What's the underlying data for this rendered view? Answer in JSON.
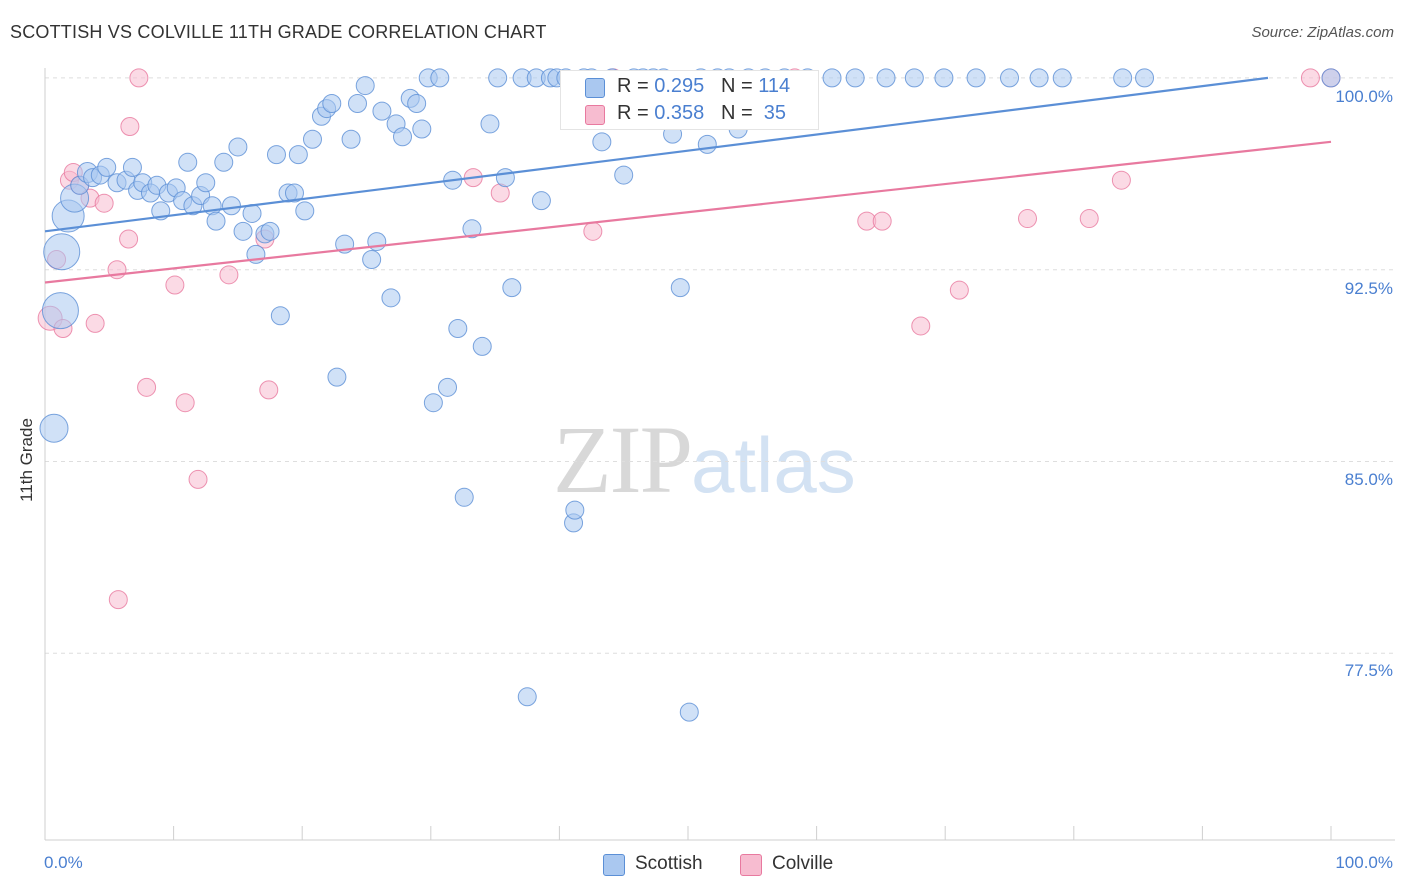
{
  "header": {
    "title": "SCOTTISH VS COLVILLE 11TH GRADE CORRELATION CHART",
    "source": "Source: ZipAtlas.com"
  },
  "watermark": {
    "zip": "ZIP",
    "atlas": "atlas"
  },
  "stats": {
    "r_label": "R =",
    "n_label": "N =",
    "rows": [
      {
        "r": "0.295",
        "n": "114",
        "color": "#aac8f0"
      },
      {
        "r": "0.358",
        "n": "35",
        "color": "#f7bcd0"
      }
    ]
  },
  "legend": {
    "items": [
      {
        "label": "Scottish",
        "color": "#aac8f0"
      },
      {
        "label": "Colville",
        "color": "#f7bcd0"
      }
    ]
  },
  "chart_data": {
    "type": "scatter",
    "title": "SCOTTISH VS COLVILLE 11TH GRADE CORRELATION CHART",
    "xlabel": "",
    "ylabel": "11th Grade",
    "xlim": [
      0,
      100
    ],
    "ylim": [
      70.2,
      100.7
    ],
    "x_tick_labels": [
      "0.0%",
      "100.0%"
    ],
    "y_ticks": [
      77.5,
      85.0,
      92.5,
      100.0
    ],
    "y_tick_labels": [
      "77.5%",
      "85.0%",
      "92.5%",
      "100.0%"
    ],
    "grid": true,
    "legend_position": "bottom-center",
    "series": [
      {
        "name": "Scottish",
        "color": "#5b8fd6",
        "fill": "#aac8f0",
        "trend": {
          "x": [
            0,
            95.1
          ],
          "y": [
            94.0,
            100.0
          ]
        },
        "points": [
          [
            0.7,
            86.3,
            14
          ],
          [
            1.2,
            90.9,
            18
          ],
          [
            1.3,
            93.2,
            18
          ],
          [
            1.8,
            94.6,
            16
          ],
          [
            2.3,
            95.3,
            14
          ],
          [
            2.7,
            95.8,
            9
          ],
          [
            3.3,
            96.3,
            10
          ],
          [
            3.7,
            96.1,
            9
          ],
          [
            4.3,
            96.2,
            9
          ],
          [
            4.8,
            96.5,
            9
          ],
          [
            5.6,
            95.9,
            9
          ],
          [
            6.3,
            96.0,
            9
          ],
          [
            6.8,
            96.5,
            9
          ],
          [
            7.2,
            95.6,
            9
          ],
          [
            7.6,
            95.9,
            9
          ],
          [
            8.2,
            95.5,
            9
          ],
          [
            8.7,
            95.8,
            9
          ],
          [
            9.0,
            94.8,
            9
          ],
          [
            9.6,
            95.5,
            9
          ],
          [
            10.2,
            95.7,
            9
          ],
          [
            10.7,
            95.2,
            9
          ],
          [
            11.1,
            96.7,
            9
          ],
          [
            11.5,
            95.0,
            9
          ],
          [
            12.1,
            95.4,
            9
          ],
          [
            12.5,
            95.9,
            9
          ],
          [
            13.0,
            95.0,
            9
          ],
          [
            13.3,
            94.4,
            9
          ],
          [
            13.9,
            96.7,
            9
          ],
          [
            14.5,
            95.0,
            9
          ],
          [
            15.0,
            97.3,
            9
          ],
          [
            15.4,
            94.0,
            9
          ],
          [
            16.1,
            94.7,
            9
          ],
          [
            16.4,
            93.1,
            9
          ],
          [
            17.1,
            93.9,
            9
          ],
          [
            17.5,
            94.0,
            9
          ],
          [
            18.0,
            97.0,
            9
          ],
          [
            18.3,
            90.7,
            9
          ],
          [
            18.9,
            95.5,
            9
          ],
          [
            19.4,
            95.5,
            9
          ],
          [
            19.7,
            97.0,
            9
          ],
          [
            20.2,
            94.8,
            9
          ],
          [
            20.8,
            97.6,
            9
          ],
          [
            21.5,
            98.5,
            9
          ],
          [
            21.9,
            98.8,
            9
          ],
          [
            22.3,
            99.0,
            9
          ],
          [
            22.7,
            88.3,
            9
          ],
          [
            23.3,
            93.5,
            9
          ],
          [
            23.8,
            97.6,
            9
          ],
          [
            24.3,
            99.0,
            9
          ],
          [
            24.9,
            99.7,
            9
          ],
          [
            25.4,
            92.9,
            9
          ],
          [
            25.8,
            93.6,
            9
          ],
          [
            26.2,
            98.7,
            9
          ],
          [
            26.9,
            91.4,
            9
          ],
          [
            27.3,
            98.2,
            9
          ],
          [
            27.8,
            97.7,
            9
          ],
          [
            28.4,
            99.2,
            9
          ],
          [
            28.9,
            99.0,
            9
          ],
          [
            29.3,
            98.0,
            9
          ],
          [
            29.8,
            100.0,
            9
          ],
          [
            30.2,
            87.3,
            9
          ],
          [
            30.7,
            100.0,
            9
          ],
          [
            31.3,
            87.9,
            9
          ],
          [
            31.7,
            96.0,
            9
          ],
          [
            32.1,
            90.2,
            9
          ],
          [
            32.6,
            83.6,
            9
          ],
          [
            33.2,
            94.1,
            9
          ],
          [
            34.0,
            89.5,
            9
          ],
          [
            34.6,
            98.2,
            9
          ],
          [
            35.2,
            100.0,
            9
          ],
          [
            35.8,
            96.1,
            9
          ],
          [
            36.3,
            91.8,
            9
          ],
          [
            37.1,
            100.0,
            9
          ],
          [
            37.5,
            75.8,
            9
          ],
          [
            38.2,
            100.0,
            9
          ],
          [
            38.6,
            95.2,
            9
          ],
          [
            39.3,
            100.0,
            9
          ],
          [
            39.8,
            100.0,
            9
          ],
          [
            40.5,
            100.0,
            9
          ],
          [
            41.1,
            82.6,
            9
          ],
          [
            41.2,
            83.1,
            9
          ],
          [
            41.9,
            100.0,
            9
          ],
          [
            42.5,
            100.0,
            9
          ],
          [
            43.3,
            97.5,
            9
          ],
          [
            44.1,
            100.0,
            9
          ],
          [
            45.0,
            96.2,
            9
          ],
          [
            45.8,
            100.0,
            9
          ],
          [
            46.5,
            100.0,
            9
          ],
          [
            47.3,
            100.0,
            9
          ],
          [
            48.1,
            100.0,
            9
          ],
          [
            48.8,
            97.8,
            9
          ],
          [
            49.4,
            91.8,
            9
          ],
          [
            50.1,
            75.2,
            9
          ],
          [
            51.0,
            100.0,
            9
          ],
          [
            51.5,
            97.4,
            9
          ],
          [
            52.3,
            100.0,
            9
          ],
          [
            53.2,
            100.0,
            9
          ],
          [
            53.9,
            98.0,
            9
          ],
          [
            54.7,
            100.0,
            9
          ],
          [
            56.0,
            100.0,
            9
          ],
          [
            57.5,
            100.0,
            9
          ],
          [
            59.3,
            100.0,
            9
          ],
          [
            61.2,
            100.0,
            9
          ],
          [
            63.0,
            100.0,
            9
          ],
          [
            65.4,
            100.0,
            9
          ],
          [
            67.6,
            100.0,
            9
          ],
          [
            69.9,
            100.0,
            9
          ],
          [
            72.4,
            100.0,
            9
          ],
          [
            75.0,
            100.0,
            9
          ],
          [
            77.3,
            100.0,
            9
          ],
          [
            79.1,
            100.0,
            9
          ],
          [
            83.8,
            100.0,
            9
          ],
          [
            85.5,
            100.0,
            9
          ],
          [
            100.0,
            100.0,
            9
          ]
        ]
      },
      {
        "name": "Colville",
        "color": "#e8799f",
        "fill": "#f7bcd0",
        "trend": {
          "x": [
            0,
            100
          ],
          "y": [
            92.0,
            97.5
          ]
        },
        "points": [
          [
            0.4,
            90.6,
            12
          ],
          [
            0.9,
            92.9,
            9
          ],
          [
            1.4,
            90.2,
            9
          ],
          [
            1.9,
            96.0,
            9
          ],
          [
            2.2,
            96.3,
            9
          ],
          [
            2.7,
            95.8,
            9
          ],
          [
            3.5,
            95.3,
            9
          ],
          [
            3.9,
            90.4,
            9
          ],
          [
            4.6,
            95.1,
            9
          ],
          [
            5.6,
            92.5,
            9
          ],
          [
            5.7,
            79.6,
            9
          ],
          [
            6.5,
            93.7,
            9
          ],
          [
            6.6,
            98.1,
            9
          ],
          [
            7.3,
            100.0,
            9
          ],
          [
            7.9,
            87.9,
            9
          ],
          [
            10.1,
            91.9,
            9
          ],
          [
            10.9,
            87.3,
            9
          ],
          [
            11.9,
            84.3,
            9
          ],
          [
            14.3,
            92.3,
            9
          ],
          [
            17.1,
            93.7,
            9
          ],
          [
            17.4,
            87.8,
            9
          ],
          [
            33.3,
            96.1,
            9
          ],
          [
            35.4,
            95.5,
            9
          ],
          [
            42.6,
            94.0,
            9
          ],
          [
            44.2,
            100.0,
            9
          ],
          [
            58.3,
            100.0,
            9
          ],
          [
            63.9,
            94.4,
            9
          ],
          [
            65.1,
            94.4,
            9
          ],
          [
            68.1,
            90.3,
            9
          ],
          [
            71.1,
            91.7,
            9
          ],
          [
            76.4,
            94.5,
            9
          ],
          [
            81.2,
            94.5,
            9
          ],
          [
            83.7,
            96.0,
            9
          ],
          [
            100.0,
            100.0,
            9
          ],
          [
            98.4,
            100.0,
            9
          ]
        ]
      }
    ]
  }
}
